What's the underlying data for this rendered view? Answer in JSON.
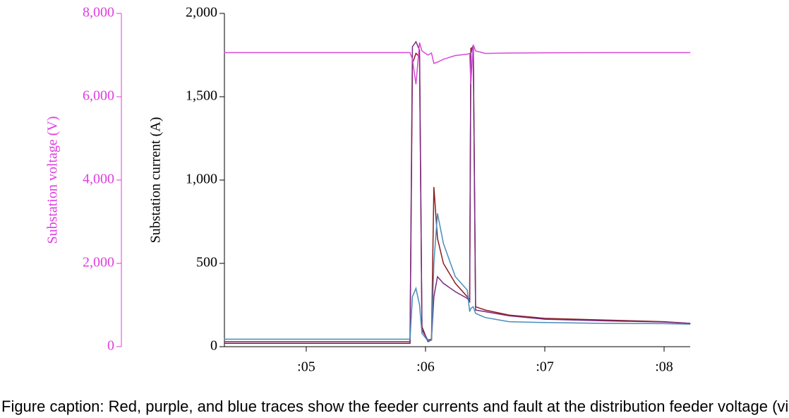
{
  "chart_data": {
    "type": "line",
    "y_label": "Substation current (A)",
    "y2_label": "Substation voltage (V)",
    "caption": "Figure caption: Red, purple, and blue traces show the feeder currents and fault at the distribution feeder voltage (violet)",
    "x": [
      4.31,
      5.5,
      5.87,
      5.89,
      5.92,
      5.95,
      5.97,
      6.02,
      6.05,
      6.07,
      6.1,
      6.15,
      6.25,
      6.35,
      6.37,
      6.38,
      6.4,
      6.42,
      6.5,
      6.7,
      7.0,
      7.5,
      8.0,
      8.22
    ],
    "xlim": [
      4.314,
      8.219
    ],
    "xticks": [
      {
        "value": 5,
        "label": ":05"
      },
      {
        "value": 6,
        "label": ":06"
      },
      {
        "value": 7,
        "label": ":07"
      },
      {
        "value": 8,
        "label": ":08"
      }
    ],
    "ylim": [
      0,
      2000
    ],
    "yticks": [
      0,
      500,
      {
        "value": 1000,
        "label": "1,000"
      },
      {
        "value": 1500,
        "label": "1,500"
      },
      {
        "value": 2000,
        "label": "2,000"
      }
    ],
    "y2lim": [
      0,
      8000
    ],
    "y2ticks": [
      0,
      {
        "value": 2000,
        "label": "2,000"
      },
      {
        "value": 4000,
        "label": "4,000"
      },
      {
        "value": 6000,
        "label": "6,000"
      },
      {
        "value": 8000,
        "label": "8,000"
      }
    ],
    "y2_color": "#e03ee0",
    "series": [
      {
        "name": "Red",
        "color": "#8b1c1c",
        "values": [
          20,
          20,
          20,
          1700,
          1760,
          1740,
          120,
          30,
          40,
          958,
          650,
          500,
          380,
          300,
          280,
          1790,
          1800,
          240,
          220,
          190,
          170,
          160,
          150,
          140
        ]
      },
      {
        "name": "Purple",
        "color": "#7a2a80",
        "values": [
          30,
          30,
          30,
          1800,
          1830,
          1780,
          100,
          40,
          45,
          300,
          420,
          380,
          330,
          290,
          270,
          1760,
          1810,
          220,
          210,
          185,
          165,
          155,
          148,
          140
        ]
      },
      {
        "name": "Blue",
        "color": "#4a8cb8",
        "values": [
          45,
          45,
          45,
          300,
          350,
          250,
          80,
          35,
          40,
          500,
          800,
          620,
          420,
          340,
          210,
          230,
          240,
          200,
          175,
          150,
          145,
          140,
          138,
          135
        ]
      },
      {
        "name": "Voltage",
        "color": "#d84ad8",
        "axis": "y2",
        "values": [
          7060,
          7060,
          7060,
          6900,
          6300,
          7300,
          7100,
          7000,
          7050,
          6800,
          6830,
          6900,
          6990,
          7020,
          7040,
          6300,
          7250,
          7100,
          7040,
          7050,
          7055,
          7060,
          7060,
          7060
        ]
      }
    ]
  }
}
